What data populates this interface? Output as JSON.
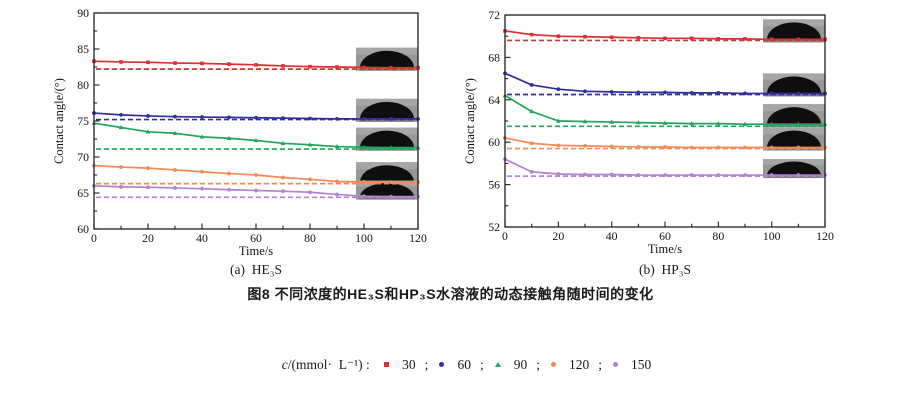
{
  "figure": {
    "subcaption_a": "(a)  HE₃S",
    "subcaption_b": "(b)  HP₃S",
    "caption": "图8  不同浓度的HE₃S和HP₃S水溶液的动态接触角随时间的变化"
  },
  "legend": {
    "prefix_italic": "c",
    "prefix_rest": "/(mmol·  L⁻¹) : ",
    "separator": ";",
    "items": [
      {
        "label": "30",
        "color": "#d83232",
        "marker": "square"
      },
      {
        "label": "60",
        "color": "#2f2f9d",
        "marker": "circle"
      },
      {
        "label": "90",
        "color": "#21a45c",
        "marker": "triangle"
      },
      {
        "label": "120",
        "color": "#f28a55",
        "marker": "circle"
      },
      {
        "label": "150",
        "color": "#b283cf",
        "marker": "circle"
      }
    ]
  },
  "chart_data": [
    {
      "type": "line",
      "title": "(a) HE₃S",
      "xlabel": "Time/s",
      "ylabel": "Contact angle/(°)",
      "xlim": [
        0,
        120
      ],
      "ylim": [
        60,
        90
      ],
      "xticks": [
        0,
        20,
        40,
        60,
        80,
        100,
        120
      ],
      "yticks": [
        60,
        65,
        70,
        75,
        80,
        85,
        90
      ],
      "x_minor_step": 10,
      "y_minor_step": 2.5,
      "grid": false,
      "x": [
        0,
        10,
        20,
        30,
        40,
        50,
        60,
        70,
        80,
        90,
        100,
        110,
        120
      ],
      "series": [
        {
          "name": "30",
          "color": "#d83232",
          "marker": "square",
          "values": [
            83.3,
            83.2,
            83.15,
            83.05,
            83.0,
            82.9,
            82.8,
            82.65,
            82.55,
            82.5,
            82.45,
            82.4,
            82.4
          ],
          "equilibrium_dashed": 82.2,
          "droplet_photo": true
        },
        {
          "name": "60",
          "color": "#2f2f9d",
          "marker": "circle",
          "values": [
            76.1,
            75.85,
            75.7,
            75.6,
            75.55,
            75.5,
            75.45,
            75.4,
            75.35,
            75.3,
            75.3,
            75.3,
            75.3
          ],
          "equilibrium_dashed": 75.2,
          "droplet_photo": true
        },
        {
          "name": "90",
          "color": "#21a45c",
          "marker": "triangle",
          "values": [
            74.7,
            74.1,
            73.5,
            73.3,
            72.8,
            72.6,
            72.3,
            71.9,
            71.7,
            71.45,
            71.35,
            71.3,
            71.3
          ],
          "equilibrium_dashed": 71.1,
          "droplet_photo": true
        },
        {
          "name": "120",
          "color": "#f28a55",
          "marker": "circle",
          "values": [
            68.8,
            68.6,
            68.45,
            68.2,
            67.95,
            67.7,
            67.5,
            67.15,
            66.9,
            66.6,
            66.55,
            66.5,
            66.5
          ],
          "equilibrium_dashed": 66.3,
          "droplet_photo": true
        },
        {
          "name": "150",
          "color": "#b283cf",
          "marker": "circle",
          "values": [
            66.0,
            65.85,
            65.8,
            65.7,
            65.6,
            65.45,
            65.35,
            65.25,
            65.1,
            64.8,
            64.55,
            64.5,
            64.5
          ],
          "equilibrium_dashed": 64.4,
          "droplet_photo": true
        }
      ]
    },
    {
      "type": "line",
      "title": "(b) HP₃S",
      "xlabel": "Time/s",
      "ylabel": "Contact angle/(°)",
      "xlim": [
        0,
        120
      ],
      "ylim": [
        52,
        72
      ],
      "xticks": [
        0,
        20,
        40,
        60,
        80,
        100,
        120
      ],
      "yticks": [
        52,
        56,
        60,
        64,
        68,
        72
      ],
      "x_minor_step": 10,
      "y_minor_step": 2,
      "grid": false,
      "x": [
        0,
        10,
        20,
        30,
        40,
        50,
        60,
        70,
        80,
        90,
        100,
        110,
        120
      ],
      "series": [
        {
          "name": "30",
          "color": "#d83232",
          "marker": "square",
          "values": [
            70.5,
            70.15,
            70.0,
            69.95,
            69.9,
            69.85,
            69.8,
            69.8,
            69.75,
            69.75,
            69.7,
            69.7,
            69.7
          ],
          "equilibrium_dashed": 69.6,
          "droplet_photo": true
        },
        {
          "name": "60",
          "color": "#2f2f9d",
          "marker": "circle",
          "values": [
            66.5,
            65.4,
            65.0,
            64.8,
            64.75,
            64.7,
            64.7,
            64.65,
            64.65,
            64.6,
            64.6,
            64.6,
            64.6
          ],
          "equilibrium_dashed": 64.5,
          "droplet_photo": true
        },
        {
          "name": "90",
          "color": "#21a45c",
          "marker": "triangle",
          "values": [
            64.4,
            62.9,
            62.0,
            61.95,
            61.9,
            61.85,
            61.8,
            61.75,
            61.75,
            61.7,
            61.7,
            61.7,
            61.7
          ],
          "equilibrium_dashed": 61.5,
          "droplet_photo": true
        },
        {
          "name": "120",
          "color": "#f28a55",
          "marker": "circle",
          "values": [
            60.4,
            59.9,
            59.7,
            59.65,
            59.6,
            59.55,
            59.55,
            59.5,
            59.5,
            59.5,
            59.5,
            59.5,
            59.5
          ],
          "equilibrium_dashed": 59.4,
          "droplet_photo": true
        },
        {
          "name": "150",
          "color": "#b283cf",
          "marker": "circle",
          "values": [
            58.4,
            57.2,
            57.0,
            56.95,
            56.95,
            56.9,
            56.9,
            56.9,
            56.9,
            56.9,
            56.9,
            56.9,
            56.9
          ],
          "equilibrium_dashed": 56.8,
          "droplet_photo": true
        }
      ]
    }
  ]
}
